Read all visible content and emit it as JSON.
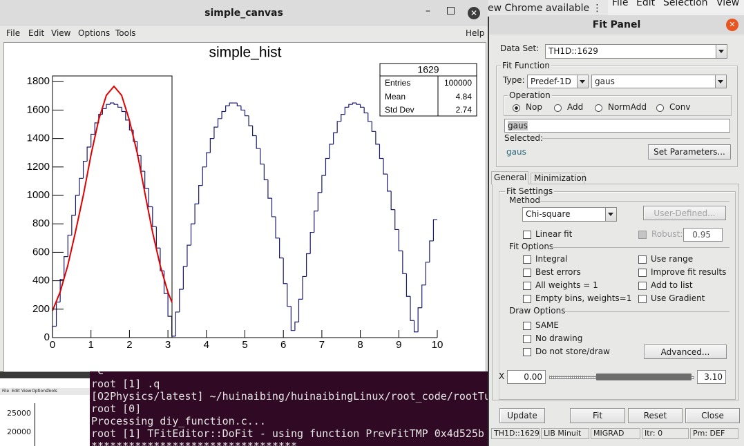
{
  "desktop": {
    "chrome_notice": "ew Chrome available ⋮",
    "editor_menu": [
      "File",
      "Edit",
      "Selection",
      "View"
    ]
  },
  "canvas_window": {
    "title": "simple_canvas",
    "menu": [
      "File",
      "Edit",
      "View",
      "Options",
      "Tools"
    ],
    "help": "Help",
    "stats": {
      "title": "1629",
      "rows": [
        [
          "Entries",
          "100000"
        ],
        [
          "Mean",
          "4.84"
        ],
        [
          "Std Dev",
          "2.74"
        ]
      ]
    }
  },
  "chart_data": {
    "type": "histogram",
    "title": "simple_hist",
    "color": "#1a1a6e",
    "bins": [
      0,
      0.1,
      0.2,
      0.3,
      0.4,
      0.5,
      0.6,
      0.7,
      0.8,
      0.9,
      1,
      1.1,
      1.2,
      1.3,
      1.4,
      1.5,
      1.6,
      1.7,
      1.8,
      1.9,
      2,
      2.1,
      2.2,
      2.3,
      2.4,
      2.5,
      2.6,
      2.7,
      2.8,
      2.9,
      3,
      3.1,
      3.2,
      3.3,
      3.4,
      3.5,
      3.6,
      3.7,
      3.8,
      3.9,
      4,
      4.1,
      4.2,
      4.3,
      4.4,
      4.5,
      4.6,
      4.7,
      4.8,
      4.9,
      5,
      5.1,
      5.2,
      5.3,
      5.4,
      5.5,
      5.6,
      5.7,
      5.8,
      5.9,
      6,
      6.1,
      6.2,
      6.3,
      6.4,
      6.5,
      6.6,
      6.7,
      6.8,
      6.9,
      7,
      7.1,
      7.2,
      7.3,
      7.4,
      7.5,
      7.6,
      7.7,
      7.8,
      7.9,
      8,
      8.1,
      8.2,
      8.3,
      8.4,
      8.5,
      8.6,
      8.7,
      8.8,
      8.9,
      9,
      9.1,
      9.2,
      9.3,
      9.4,
      9.5,
      9.6,
      9.7,
      9.8,
      9.9,
      10
    ],
    "values": [
      80,
      250,
      410,
      570,
      720,
      860,
      1000,
      1120,
      1240,
      1340,
      1430,
      1510,
      1570,
      1610,
      1640,
      1650,
      1640,
      1620,
      1590,
      1530,
      1460,
      1380,
      1280,
      1170,
      1050,
      920,
      780,
      630,
      470,
      310,
      150,
      10,
      180,
      340,
      500,
      650,
      800,
      940,
      1070,
      1200,
      1300,
      1400,
      1480,
      1540,
      1590,
      1630,
      1650,
      1650,
      1630,
      1600,
      1560,
      1490,
      1420,
      1330,
      1220,
      1110,
      980,
      850,
      700,
      560,
      380,
      220,
      50,
      110,
      270,
      430,
      590,
      740,
      890,
      1020,
      1140,
      1260,
      1360,
      1440,
      1520,
      1570,
      1620,
      1640,
      1650,
      1640,
      1620,
      1580,
      1520,
      1450,
      1360,
      1260,
      1150,
      1030,
      900,
      760,
      610,
      450,
      290,
      120,
      40,
      210,
      370,
      530,
      680,
      830
    ],
    "xlim": [
      0,
      10
    ],
    "ylim": [
      0,
      1840
    ],
    "xticks": [
      0,
      1,
      2,
      3,
      4,
      5,
      6,
      7,
      8,
      9,
      10
    ],
    "yticks": [
      0,
      200,
      400,
      600,
      800,
      1000,
      1200,
      1400,
      1600,
      1800
    ]
  },
  "terminal": {
    "lines": [
      "^C",
      "root [1] .q",
      "[O2Physics/latest] ~/huinaibing/huinaibingLinux/root_code/rootTu",
      "root [0]",
      "Processing diy_function.c...",
      "root [1] TFitEditor::DoFit - using function PrevFitTMP  0x4d525b",
      "*********************************"
    ]
  },
  "mini_window": {
    "menu": [
      "File",
      "Edit",
      "View",
      "Options",
      "Tools"
    ],
    "ticks": [
      "25000",
      "20000"
    ]
  },
  "fit_panel": {
    "title": "Fit Panel",
    "data_set_label": "Data Set:",
    "data_set": "TH1D::1629",
    "fit_function": {
      "legend": "Fit Function",
      "type_label": "Type:",
      "type": "Predef-1D",
      "function": "gaus",
      "operation": {
        "legend": "Operation",
        "options": [
          "Nop",
          "Add",
          "NormAdd",
          "Conv"
        ]
      },
      "formula": "gaus",
      "selected_label": "Selected:",
      "selected": "gaus",
      "set_parameters": "Set Parameters..."
    },
    "tabs": [
      "General",
      "Minimization"
    ],
    "fit_settings": {
      "legend": "Fit Settings",
      "method_legend": "Method",
      "method": "Chi-square",
      "user_defined": "User-Defined...",
      "linear_fit": "Linear fit",
      "robust": "Robust:",
      "robust_value": "0.95",
      "fit_options_legend": "Fit Options",
      "fit_options_left": [
        "Integral",
        "Best errors",
        "All weights = 1",
        "Empty bins, weights=1"
      ],
      "fit_options_right": [
        "Use range",
        "Improve fit results",
        "Add to list",
        "Use Gradient"
      ],
      "draw_options_legend": "Draw Options",
      "draw_options": [
        "SAME",
        "No drawing",
        "Do not store/draw"
      ],
      "advanced": "Advanced..."
    },
    "range": {
      "label": "X",
      "min": "0.00",
      "max": "3.10"
    },
    "buttons": [
      "Update",
      "Fit",
      "Reset",
      "Close"
    ],
    "status": [
      "TH1D::1629",
      "LIB Minuit",
      "MIGRAD",
      "Itr: 0",
      "Pm: DEF"
    ]
  }
}
